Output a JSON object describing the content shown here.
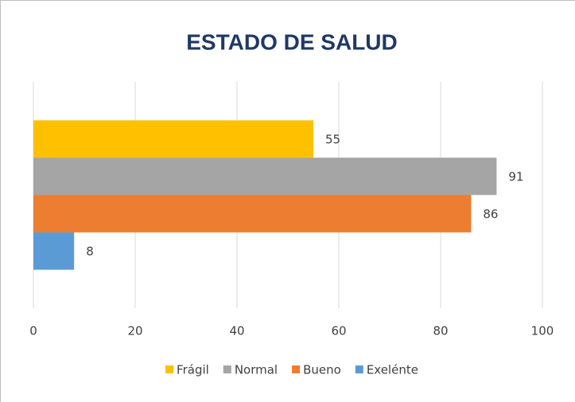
{
  "chart_data": {
    "type": "bar",
    "orientation": "horizontal",
    "title": "ESTADO DE SALUD",
    "categories": [
      null
    ],
    "series": [
      {
        "name": "Frágil",
        "color": "#ffc000",
        "values": [
          55
        ]
      },
      {
        "name": "Normal",
        "color": "#a5a5a5",
        "values": [
          91
        ]
      },
      {
        "name": "Bueno",
        "color": "#ed7d31",
        "values": [
          86
        ]
      },
      {
        "name": "Exelénte",
        "color": "#5b9bd5",
        "values": [
          8
        ]
      }
    ],
    "xlim": [
      0,
      100
    ],
    "xticks": [
      0,
      20,
      40,
      60,
      80,
      100
    ],
    "grid": true,
    "legend": "bottom"
  }
}
